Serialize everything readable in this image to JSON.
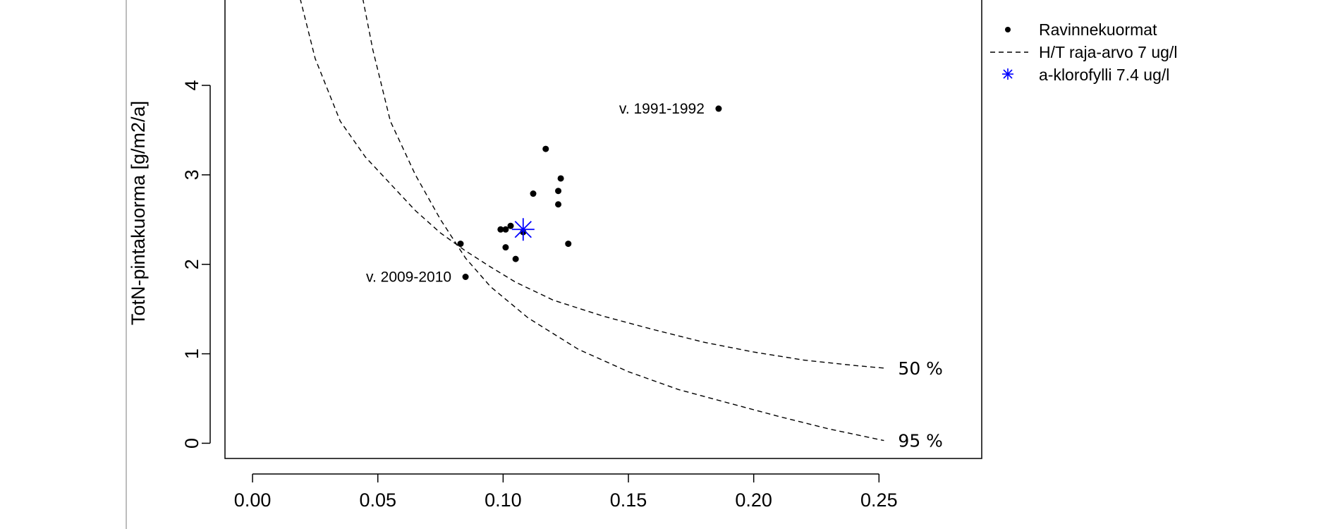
{
  "chart_data": {
    "type": "scatter",
    "xlabel": "",
    "ylabel": "TotN-pintakuorma [g/m2/a]",
    "xlim": [
      -0.011,
      0.291
    ],
    "ylim": [
      -0.17,
      4.97
    ],
    "x_ticks": [
      "0.00",
      "0.05",
      "0.10",
      "0.15",
      "0.20",
      "0.25"
    ],
    "y_ticks": [
      "0",
      "1",
      "2",
      "3",
      "4"
    ],
    "grid": false,
    "legend_position": "right-outside-top",
    "series": [
      {
        "name": "Ravinnekuormat",
        "marker": "dot",
        "color": "#000000",
        "points": [
          {
            "x": 0.083,
            "y": 2.23
          },
          {
            "x": 0.085,
            "y": 1.86
          },
          {
            "x": 0.099,
            "y": 2.39
          },
          {
            "x": 0.101,
            "y": 2.39
          },
          {
            "x": 0.103,
            "y": 2.43
          },
          {
            "x": 0.101,
            "y": 2.19
          },
          {
            "x": 0.105,
            "y": 2.06
          },
          {
            "x": 0.108,
            "y": 2.36
          },
          {
            "x": 0.112,
            "y": 2.79
          },
          {
            "x": 0.117,
            "y": 3.29
          },
          {
            "x": 0.122,
            "y": 2.82
          },
          {
            "x": 0.123,
            "y": 2.96
          },
          {
            "x": 0.122,
            "y": 2.67
          },
          {
            "x": 0.126,
            "y": 2.23
          },
          {
            "x": 0.186,
            "y": 3.74
          }
        ]
      },
      {
        "name": "a-klorofylli  7.4 ug/l",
        "marker": "asterisk",
        "color": "#0000ff",
        "points": [
          {
            "x": 0.108,
            "y": 2.39
          }
        ]
      }
    ],
    "curves": [
      {
        "name": "H/T raja-arvo 7 ug/l",
        "label": "50 %",
        "style": "dashed",
        "points": [
          [
            0.019,
            4.97
          ],
          [
            0.025,
            4.3
          ],
          [
            0.035,
            3.6
          ],
          [
            0.045,
            3.2
          ],
          [
            0.055,
            2.9
          ],
          [
            0.065,
            2.6
          ],
          [
            0.075,
            2.35
          ],
          [
            0.085,
            2.15
          ],
          [
            0.095,
            1.97
          ],
          [
            0.105,
            1.8
          ],
          [
            0.12,
            1.6
          ],
          [
            0.14,
            1.42
          ],
          [
            0.16,
            1.27
          ],
          [
            0.18,
            1.13
          ],
          [
            0.2,
            1.02
          ],
          [
            0.22,
            0.93
          ],
          [
            0.24,
            0.87
          ],
          [
            0.252,
            0.84
          ]
        ]
      },
      {
        "name": "H/T raja-arvo 7 ug/l",
        "label": "95 %",
        "style": "dashed",
        "points": [
          [
            0.044,
            4.97
          ],
          [
            0.048,
            4.4
          ],
          [
            0.055,
            3.6
          ],
          [
            0.065,
            3.0
          ],
          [
            0.075,
            2.5
          ],
          [
            0.085,
            2.07
          ],
          [
            0.095,
            1.75
          ],
          [
            0.11,
            1.4
          ],
          [
            0.13,
            1.05
          ],
          [
            0.15,
            0.8
          ],
          [
            0.17,
            0.6
          ],
          [
            0.19,
            0.45
          ],
          [
            0.21,
            0.3
          ],
          [
            0.23,
            0.16
          ],
          [
            0.252,
            0.03
          ]
        ]
      }
    ],
    "annotations": [
      {
        "text": "v. 1991-1992",
        "x": 0.186,
        "y": 3.74
      },
      {
        "text": "v. 2009-2010",
        "x": 0.085,
        "y": 1.86
      }
    ],
    "legend": [
      {
        "symbol": "dot",
        "label": "Ravinnekuormat",
        "color": "#000000"
      },
      {
        "symbol": "dashed-line",
        "label": "H/T raja-arvo 7 ug/l",
        "color": "#000000"
      },
      {
        "symbol": "asterisk",
        "label": "a-klorofylli  7.4 ug/l",
        "color": "#0000ff"
      }
    ]
  }
}
